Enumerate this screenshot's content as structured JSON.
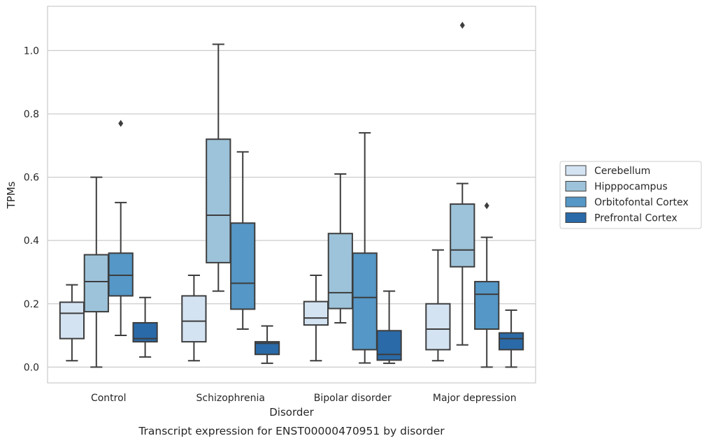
{
  "chart_data": {
    "type": "box",
    "title": "",
    "caption": "Transcript expression for ENST00000470951 by disorder",
    "xlabel": "Disorder",
    "ylabel": "TPMs",
    "ylim": [
      -0.05,
      1.14
    ],
    "yticks": [
      0.0,
      0.2,
      0.4,
      0.6,
      0.8,
      1.0
    ],
    "ytick_labels": [
      "0.0",
      "0.2",
      "0.4",
      "0.6",
      "0.8",
      "1.0"
    ],
    "grid": "horizontal",
    "legend_position": "right",
    "categories": [
      "Control",
      "Schizophrenia",
      "Bipolar disorder",
      "Major depression"
    ],
    "series": [
      {
        "name": "Cerebellum",
        "color": "#d4e3f2",
        "boxes": [
          {
            "whislo": 0.02,
            "q1": 0.09,
            "med": 0.17,
            "q3": 0.205,
            "whishi": 0.26,
            "fliers": []
          },
          {
            "whislo": 0.02,
            "q1": 0.08,
            "med": 0.145,
            "q3": 0.225,
            "whishi": 0.29,
            "fliers": []
          },
          {
            "whislo": 0.02,
            "q1": 0.133,
            "med": 0.155,
            "q3": 0.207,
            "whishi": 0.29,
            "fliers": []
          },
          {
            "whislo": 0.02,
            "q1": 0.055,
            "med": 0.12,
            "q3": 0.2,
            "whishi": 0.37,
            "fliers": []
          }
        ]
      },
      {
        "name": "Hipppocampus",
        "color": "#9dc3da",
        "boxes": [
          {
            "whislo": 0.0,
            "q1": 0.175,
            "med": 0.27,
            "q3": 0.355,
            "whishi": 0.6,
            "fliers": []
          },
          {
            "whislo": 0.24,
            "q1": 0.33,
            "med": 0.48,
            "q3": 0.72,
            "whishi": 1.02,
            "fliers": []
          },
          {
            "whislo": 0.14,
            "q1": 0.185,
            "med": 0.235,
            "q3": 0.422,
            "whishi": 0.61,
            "fliers": []
          },
          {
            "whislo": 0.07,
            "q1": 0.317,
            "med": 0.37,
            "q3": 0.515,
            "whishi": 0.58,
            "fliers": [
              1.08
            ]
          }
        ]
      },
      {
        "name": "Orbitofontal Cortex",
        "color": "#5597c6",
        "boxes": [
          {
            "whislo": 0.1,
            "q1": 0.225,
            "med": 0.29,
            "q3": 0.36,
            "whishi": 0.52,
            "fliers": [
              0.77
            ]
          },
          {
            "whislo": 0.12,
            "q1": 0.183,
            "med": 0.265,
            "q3": 0.455,
            "whishi": 0.68,
            "fliers": []
          },
          {
            "whislo": 0.013,
            "q1": 0.055,
            "med": 0.22,
            "q3": 0.36,
            "whishi": 0.74,
            "fliers": []
          },
          {
            "whislo": 0.0,
            "q1": 0.12,
            "med": 0.23,
            "q3": 0.27,
            "whishi": 0.41,
            "fliers": [
              0.51
            ]
          }
        ]
      },
      {
        "name": "Prefrontal Cortex",
        "color": "#2a6aa8",
        "boxes": [
          {
            "whislo": 0.032,
            "q1": 0.08,
            "med": 0.09,
            "q3": 0.14,
            "whishi": 0.22,
            "fliers": []
          },
          {
            "whislo": 0.012,
            "q1": 0.04,
            "med": 0.075,
            "q3": 0.08,
            "whishi": 0.13,
            "fliers": []
          },
          {
            "whislo": 0.012,
            "q1": 0.022,
            "med": 0.04,
            "q3": 0.115,
            "whishi": 0.24,
            "fliers": []
          },
          {
            "whislo": 0.0,
            "q1": 0.055,
            "med": 0.09,
            "q3": 0.108,
            "whishi": 0.18,
            "fliers": []
          }
        ]
      }
    ]
  }
}
